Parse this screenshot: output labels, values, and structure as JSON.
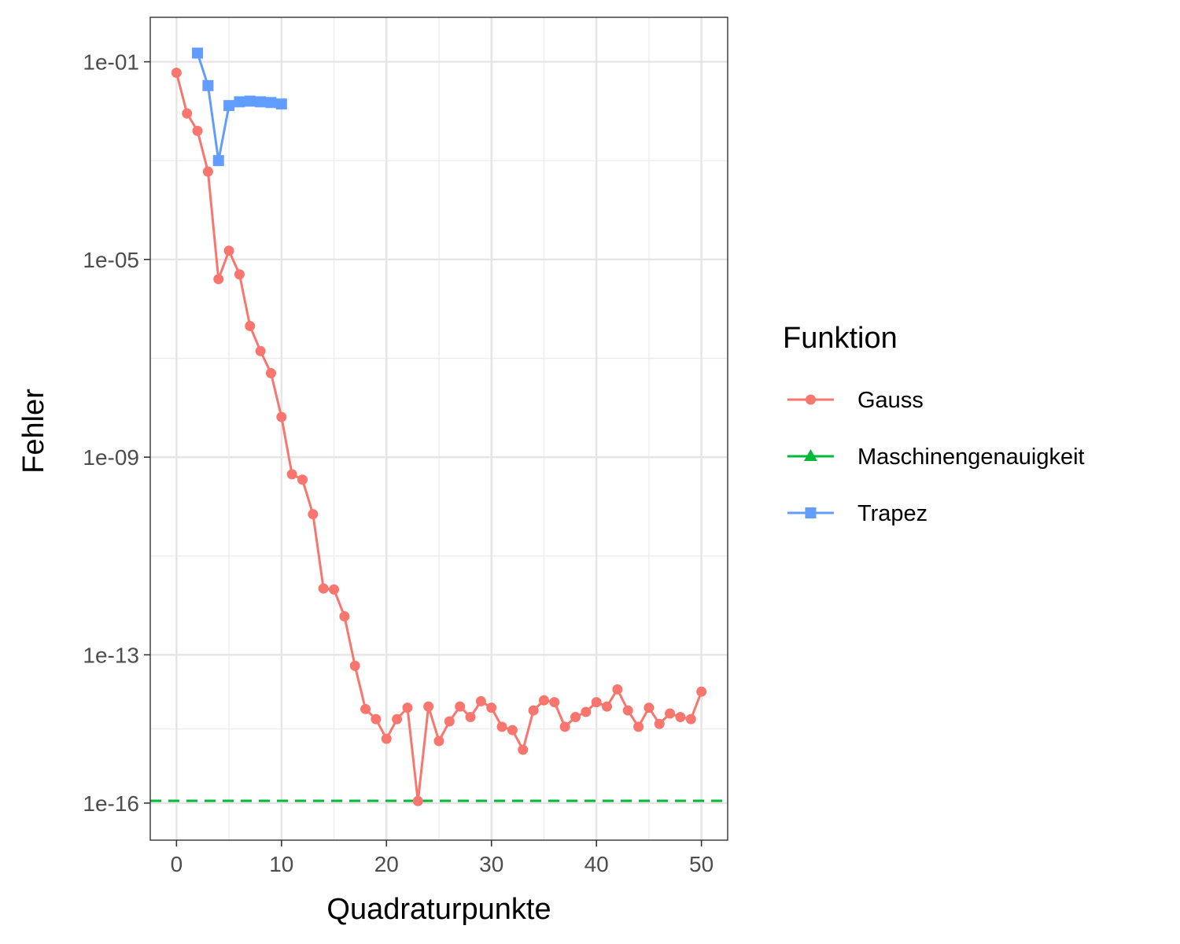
{
  "chart_data": {
    "type": "line",
    "xlabel": "Quadraturpunkte",
    "ylabel": "Fehler",
    "xlim": [
      -2.5,
      52.5
    ],
    "x_ticks": [
      0,
      10,
      20,
      30,
      40,
      50
    ],
    "x_tick_labels": [
      "0",
      "10",
      "20",
      "30",
      "40",
      "50"
    ],
    "y_scale": "log10",
    "ylim_log10": [
      -16.75,
      -0.1
    ],
    "y_ticks": [
      0.1,
      1e-05,
      1e-09,
      1e-13,
      1e-16
    ],
    "y_tick_labels": [
      "1e-01",
      "1e-05",
      "1e-09",
      "1e-13",
      "1e-16"
    ],
    "grid": true,
    "legend": {
      "title": "Funktion",
      "position": "right",
      "entries": [
        "Gauss",
        "Maschinengenauigkeit",
        "Trapez"
      ]
    },
    "series": [
      {
        "name": "Gauss",
        "color": "#F8766D",
        "marker": "circle",
        "line": "solid",
        "x": [
          0,
          1,
          2,
          3,
          4,
          5,
          6,
          7,
          8,
          9,
          10,
          11,
          12,
          13,
          14,
          15,
          16,
          17,
          18,
          19,
          20,
          21,
          22,
          23,
          24,
          25,
          26,
          27,
          28,
          29,
          30,
          31,
          32,
          33,
          34,
          35,
          36,
          37,
          38,
          39,
          40,
          41,
          42,
          43,
          44,
          45,
          46,
          47,
          48,
          49,
          50
        ],
        "y": [
          0.06,
          0.009,
          0.004,
          0.0006,
          4e-06,
          1.5e-05,
          5e-06,
          4.5e-07,
          1.4e-07,
          5e-08,
          6.5e-09,
          4.5e-10,
          3.5e-10,
          7e-11,
          2.2e-12,
          2.1e-12,
          6e-13,
          6e-14,
          8e-15,
          5e-15,
          2e-15,
          5e-15,
          8.5e-15,
          1.1e-16,
          9e-15,
          1.8e-15,
          4.5e-15,
          9e-15,
          5.5e-15,
          1.15e-14,
          8.5e-15,
          3.5e-15,
          3e-15,
          1.2e-15,
          7.5e-15,
          1.2e-14,
          1.1e-14,
          3.5e-15,
          5.5e-15,
          7e-15,
          1.1e-14,
          9e-15,
          2e-14,
          7.5e-15,
          3.5e-15,
          8.5e-15,
          4e-15,
          6.5e-15,
          5.5e-15,
          5e-15,
          1.8e-14
        ]
      },
      {
        "name": "Maschinengenauigkeit",
        "color": "#00BA38",
        "marker": "triangle",
        "line": "dashed",
        "x": [
          -2.5,
          52.5
        ],
        "y": [
          1.11e-16,
          1.11e-16
        ]
      },
      {
        "name": "Trapez",
        "color": "#619CFF",
        "marker": "square",
        "line": "solid",
        "x": [
          2,
          3,
          4,
          5,
          6,
          7,
          8,
          9,
          10
        ],
        "y": [
          0.15,
          0.033,
          0.001,
          0.013,
          0.0155,
          0.016,
          0.0155,
          0.015,
          0.014
        ]
      }
    ]
  }
}
